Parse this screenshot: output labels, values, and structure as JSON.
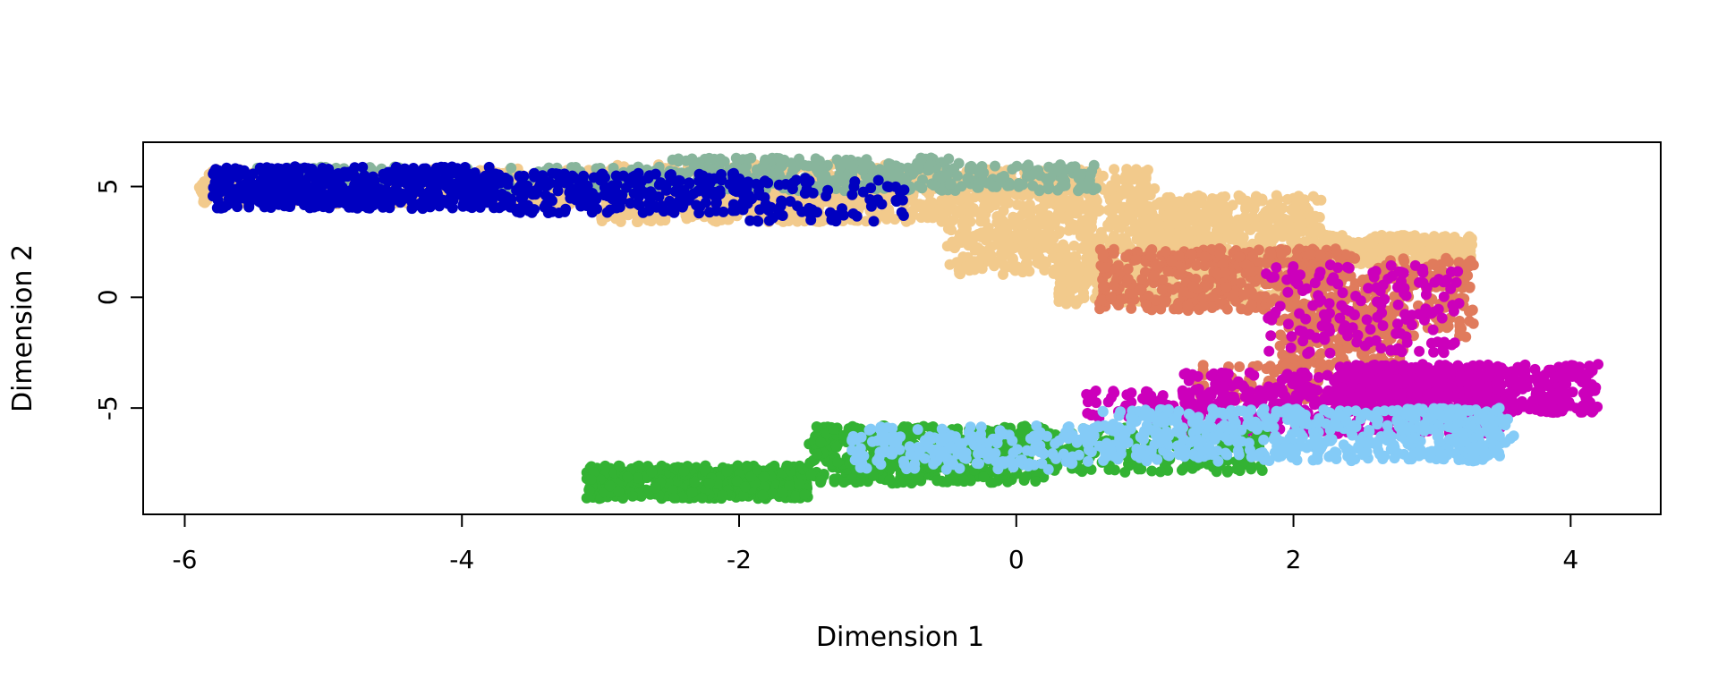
{
  "chart_data": {
    "type": "scatter",
    "title": "",
    "xlabel": "Dimension 1",
    "ylabel": "Dimension 2",
    "xlim": [
      -6.3,
      4.65
    ],
    "ylim": [
      -9.8,
      7.0
    ],
    "x_ticks": [
      -6,
      -4,
      -2,
      0,
      2,
      4
    ],
    "x_tick_labels": [
      "-6",
      "-4",
      "-2",
      "0",
      "2",
      "4"
    ],
    "y_ticks": [
      -5,
      0,
      5
    ],
    "y_tick_labels": [
      "-5",
      "0",
      "5"
    ],
    "grid": false,
    "legend": "none",
    "series": [
      {
        "color": "#F2CA8C",
        "regions": [
          {
            "x": [
              -5.9,
              -3.0
            ],
            "y": [
              4.2,
              5.8
            ]
          },
          {
            "x": [
              -3.0,
              -0.5
            ],
            "y": [
              3.4,
              6.0
            ]
          },
          {
            "x": [
              -0.5,
              1.0
            ],
            "y": [
              1.0,
              5.8
            ]
          },
          {
            "x": [
              1.0,
              2.2
            ],
            "y": [
              1.2,
              4.6
            ]
          },
          {
            "x": [
              2.2,
              3.3
            ],
            "y": [
              1.5,
              2.8
            ]
          },
          {
            "x": [
              0.3,
              2.0
            ],
            "y": [
              -0.3,
              1.2
            ]
          }
        ],
        "counts": [
          520,
          600,
          700,
          500,
          260,
          260
        ]
      },
      {
        "color": "#88B59C",
        "regions": [
          {
            "x": [
              -5.5,
              -2.5
            ],
            "y": [
              4.8,
              5.9
            ]
          },
          {
            "x": [
              -2.5,
              -0.3
            ],
            "y": [
              4.8,
              6.3
            ]
          },
          {
            "x": [
              -0.3,
              0.6
            ],
            "y": [
              4.8,
              6.0
            ]
          }
        ],
        "counts": [
          180,
          300,
          90
        ]
      },
      {
        "color": "#0000C0",
        "regions": [
          {
            "x": [
              -5.8,
              -3.8
            ],
            "y": [
              4.0,
              5.9
            ]
          },
          {
            "x": [
              -3.8,
              -2.0
            ],
            "y": [
              3.8,
              5.6
            ]
          },
          {
            "x": [
              -2.0,
              -0.8
            ],
            "y": [
              3.4,
              5.4
            ]
          }
        ],
        "counts": [
          520,
          260,
          90
        ]
      },
      {
        "color": "#E07B5C",
        "regions": [
          {
            "x": [
              0.6,
              2.4
            ],
            "y": [
              -0.6,
              2.2
            ]
          },
          {
            "x": [
              2.0,
              3.3
            ],
            "y": [
              -1.8,
              2.0
            ]
          },
          {
            "x": [
              1.9,
              2.8
            ],
            "y": [
              -3.2,
              -0.4
            ]
          },
          {
            "x": [
              1.3,
              2.6
            ],
            "y": [
              -4.6,
              -3.0
            ]
          }
        ],
        "counts": [
          420,
          280,
          160,
          90
        ]
      },
      {
        "color": "#CC00BB",
        "regions": [
          {
            "x": [
              2.3,
              4.2
            ],
            "y": [
              -5.2,
              -3.0
            ]
          },
          {
            "x": [
              1.2,
              3.5
            ],
            "y": [
              -6.2,
              -3.4
            ]
          },
          {
            "x": [
              1.8,
              3.2
            ],
            "y": [
              -2.6,
              1.5
            ]
          },
          {
            "x": [
              0.5,
              1.5
            ],
            "y": [
              -5.5,
              -4.2
            ]
          }
        ],
        "counts": [
          520,
          460,
          160,
          80
        ]
      },
      {
        "color": "#33B233",
        "regions": [
          {
            "x": [
              -3.1,
              -1.5
            ],
            "y": [
              -9.1,
              -7.6
            ]
          },
          {
            "x": [
              -1.5,
              0.2
            ],
            "y": [
              -8.4,
              -5.8
            ]
          },
          {
            "x": [
              0.2,
              1.8
            ],
            "y": [
              -7.9,
              -5.9
            ]
          }
        ],
        "counts": [
          420,
          480,
          220
        ]
      },
      {
        "color": "#84CBF7",
        "regions": [
          {
            "x": [
              -1.2,
              0.6
            ],
            "y": [
              -7.8,
              -5.8
            ]
          },
          {
            "x": [
              0.6,
              3.5
            ],
            "y": [
              -7.4,
              -5.0
            ]
          },
          {
            "x": [
              2.8,
              3.6
            ],
            "y": [
              -6.6,
              -5.0
            ]
          }
        ],
        "counts": [
          200,
          520,
          80
        ]
      }
    ]
  }
}
